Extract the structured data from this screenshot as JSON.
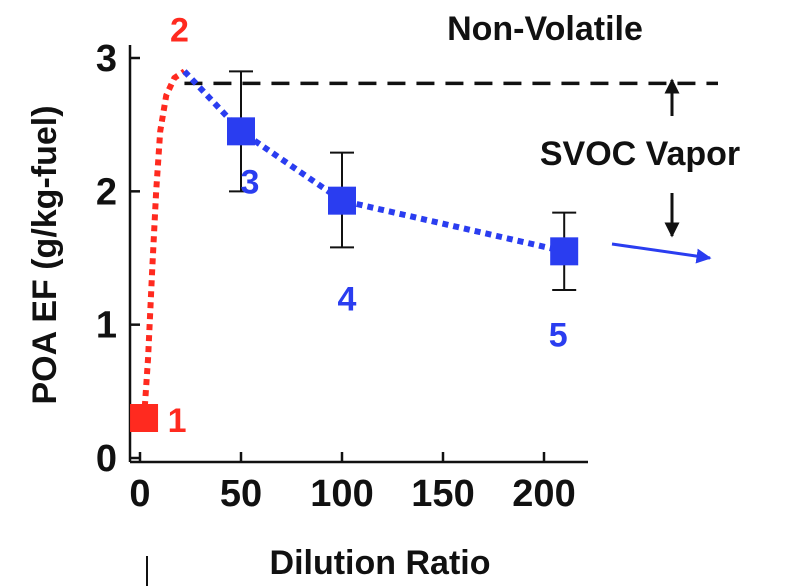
{
  "chart_data": {
    "type": "line",
    "title": "",
    "xlabel": "Dilution Ratio",
    "ylabel": "POA EF (g/kg-fuel)",
    "xlim": [
      0,
      230
    ],
    "ylim": [
      0,
      3
    ],
    "x_ticks": [
      0,
      50,
      100,
      150,
      200
    ],
    "y_ticks": [
      0,
      1,
      2,
      3
    ],
    "grid": false,
    "legend": "none",
    "colors": {
      "red": "#ff2a1f",
      "blue": "#2a3df0",
      "black": "#111111"
    },
    "series": [
      {
        "color": "#ff2a1f",
        "style": "dotted",
        "x": [
          2,
          4,
          6,
          8,
          10,
          13,
          17,
          22
        ],
        "y": [
          0.3,
          0.75,
          1.4,
          2.0,
          2.45,
          2.72,
          2.85,
          2.9
        ]
      },
      {
        "color": "#2a3df0",
        "style": "dotted",
        "x": [
          22,
          50,
          100,
          210
        ],
        "y": [
          2.9,
          2.45,
          1.93,
          1.55
        ]
      }
    ],
    "points": [
      {
        "label": "1",
        "x": 2,
        "y": 0.3,
        "color": "#ff2a1f"
      },
      {
        "label": "2",
        "x": 22,
        "y": 2.9,
        "color": "#ff2a1f"
      },
      {
        "label": "3",
        "x": 50,
        "y": 2.45,
        "err_low": 2.0,
        "err_high": 2.9,
        "color": "#2a3df0"
      },
      {
        "label": "4",
        "x": 100,
        "y": 1.93,
        "err_low": 1.58,
        "err_high": 2.29,
        "color": "#2a3df0"
      },
      {
        "label": "5",
        "x": 210,
        "y": 1.55,
        "err_low": 1.26,
        "err_high": 1.84,
        "color": "#2a3df0"
      }
    ],
    "reference_line": {
      "label": "Non-Volatile",
      "y": 2.9,
      "style": "dashed",
      "color": "#111111"
    },
    "annotations": [
      {
        "text": "SVOC Vapor"
      }
    ]
  }
}
